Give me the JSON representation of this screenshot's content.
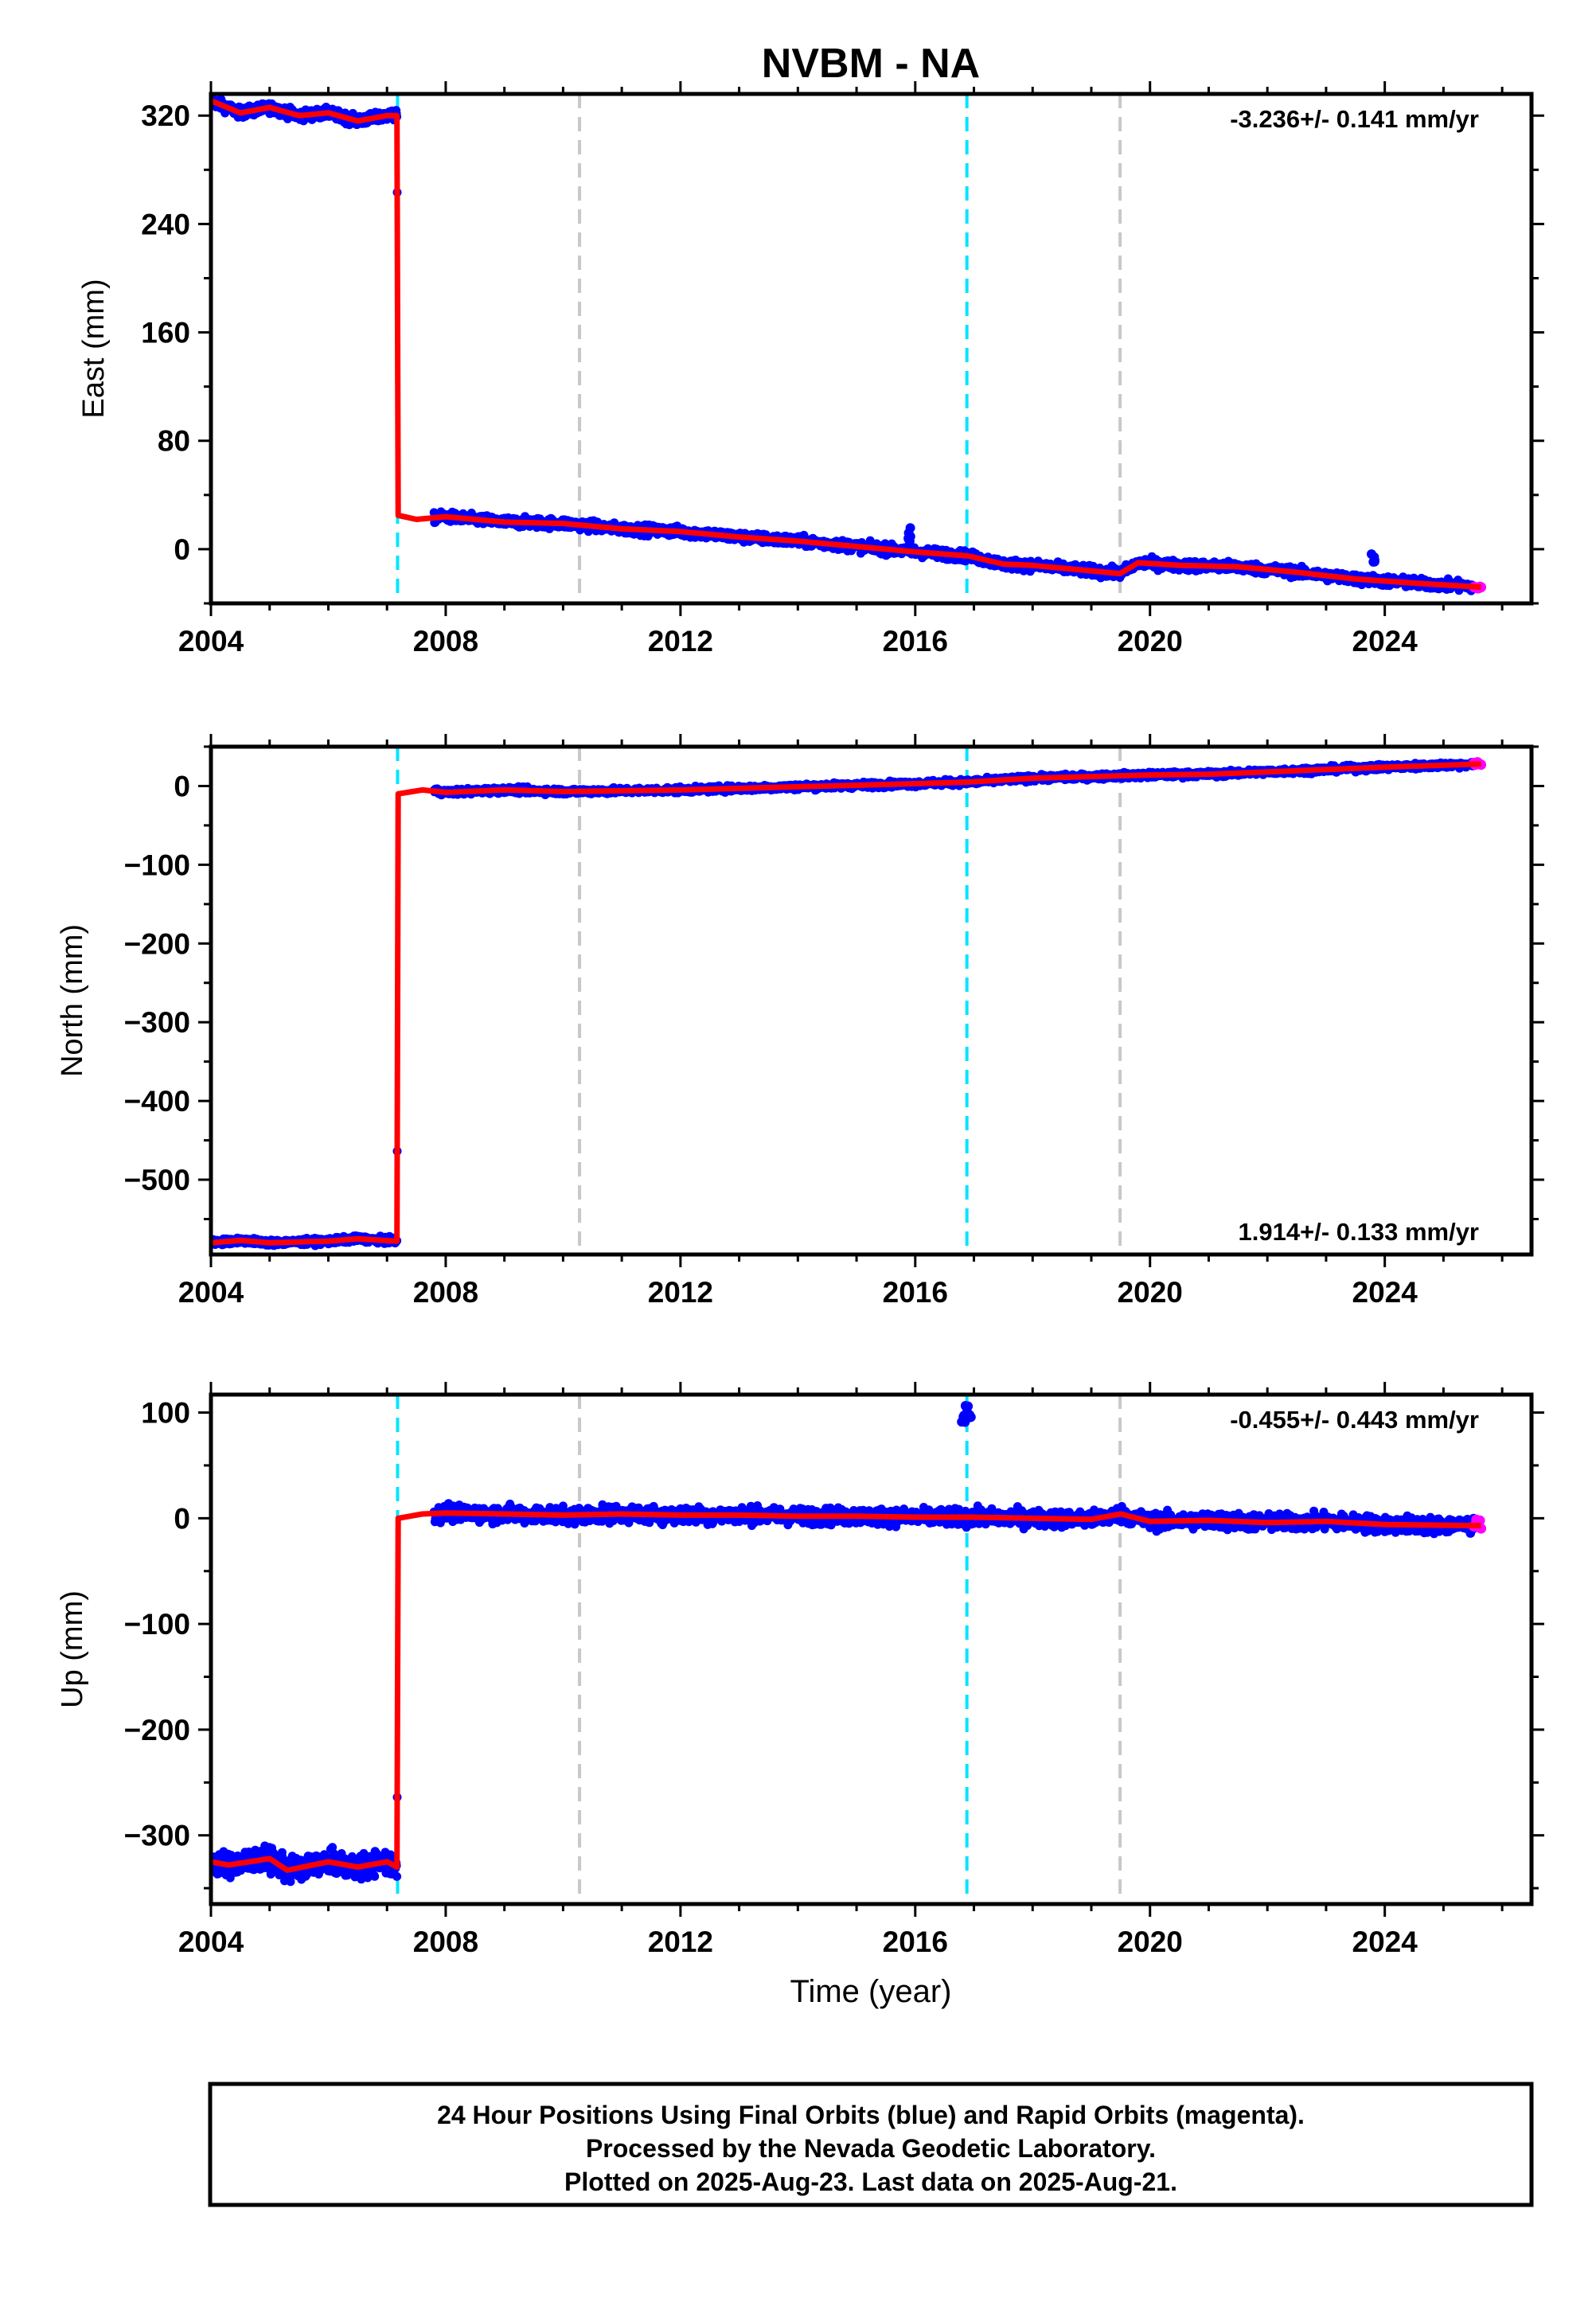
{
  "title": "NVBM - NA",
  "colors": {
    "observations": "#0000ff",
    "rapid": "#ff00ff",
    "model": "#ff0000",
    "equipment_change": "#00e5ff",
    "other_event": "#c8c8c8"
  },
  "xaxis": {
    "xlim": [
      2004.0,
      2026.5
    ],
    "ticks": [
      2004,
      2008,
      2012,
      2016,
      2020,
      2024
    ],
    "label": "Time (year)"
  },
  "events": {
    "cyan": [
      2007.18,
      2016.88
    ],
    "gray": [
      2010.28,
      2019.49
    ]
  },
  "footer": {
    "line1": "24 Hour Positions Using Final Orbits (blue) and Rapid Orbits (magenta).",
    "line2": "Processed by the Nevada Geodetic Laboratory.",
    "line3": "Plotted on 2025-Aug-23. Last data on 2025-Aug-21."
  },
  "chart_data": [
    {
      "type": "scatter",
      "component": "east",
      "ylabel": "East (mm)",
      "ylim": [
        -40,
        336
      ],
      "yticks": [
        0,
        80,
        160,
        240,
        320
      ],
      "rate_label": "-3.236+/- 0.141 mm/yr",
      "rate_position": "top-right",
      "data_range": [
        2004.0,
        2025.64
      ],
      "offset": {
        "epoch": 2007.18,
        "before": 320,
        "after": 25
      },
      "model": [
        {
          "x": 2004.0,
          "y": 331
        },
        {
          "x": 2004.5,
          "y": 322
        },
        {
          "x": 2005.0,
          "y": 326
        },
        {
          "x": 2005.5,
          "y": 320
        },
        {
          "x": 2006.0,
          "y": 322
        },
        {
          "x": 2006.5,
          "y": 316
        },
        {
          "x": 2007.0,
          "y": 320
        },
        {
          "x": 2007.17,
          "y": 320
        },
        {
          "x": 2007.19,
          "y": 25
        },
        {
          "x": 2007.5,
          "y": 22
        },
        {
          "x": 2008.0,
          "y": 24
        },
        {
          "x": 2009.0,
          "y": 20
        },
        {
          "x": 2010.0,
          "y": 19
        },
        {
          "x": 2011.0,
          "y": 15
        },
        {
          "x": 2012.0,
          "y": 13
        },
        {
          "x": 2013.0,
          "y": 9
        },
        {
          "x": 2014.0,
          "y": 6
        },
        {
          "x": 2015.0,
          "y": 2
        },
        {
          "x": 2016.0,
          "y": -2
        },
        {
          "x": 2016.9,
          "y": -5
        },
        {
          "x": 2017.5,
          "y": -11
        },
        {
          "x": 2018.0,
          "y": -12
        },
        {
          "x": 2019.0,
          "y": -16
        },
        {
          "x": 2019.49,
          "y": -18
        },
        {
          "x": 2019.8,
          "y": -10
        },
        {
          "x": 2020.5,
          "y": -12
        },
        {
          "x": 2021.5,
          "y": -13
        },
        {
          "x": 2022.5,
          "y": -17
        },
        {
          "x": 2023.5,
          "y": -22
        },
        {
          "x": 2024.5,
          "y": -25
        },
        {
          "x": 2025.64,
          "y": -28
        }
      ],
      "outliers": [
        {
          "x": 2015.9,
          "y": 10
        },
        {
          "x": 2023.8,
          "y": -8
        }
      ]
    },
    {
      "type": "scatter",
      "component": "north",
      "ylabel": "North (mm)",
      "ylim": [
        -595,
        50
      ],
      "yticks": [
        0,
        -100,
        -200,
        -300,
        -400,
        -500
      ],
      "rate_label": "1.914+/- 0.133 mm/yr",
      "rate_position": "bottom-right",
      "data_range": [
        2004.0,
        2025.64
      ],
      "offset": {
        "epoch": 2007.18,
        "before": -578,
        "after": -10
      },
      "model": [
        {
          "x": 2004.0,
          "y": -580
        },
        {
          "x": 2004.5,
          "y": -577
        },
        {
          "x": 2005.0,
          "y": -580
        },
        {
          "x": 2006.0,
          "y": -578
        },
        {
          "x": 2006.5,
          "y": -575
        },
        {
          "x": 2007.17,
          "y": -578
        },
        {
          "x": 2007.19,
          "y": -10
        },
        {
          "x": 2007.6,
          "y": -5
        },
        {
          "x": 2008.0,
          "y": -8
        },
        {
          "x": 2009.0,
          "y": -5
        },
        {
          "x": 2010.0,
          "y": -7
        },
        {
          "x": 2011.0,
          "y": -6
        },
        {
          "x": 2012.0,
          "y": -5
        },
        {
          "x": 2013.0,
          "y": -3
        },
        {
          "x": 2014.0,
          "y": -1
        },
        {
          "x": 2015.0,
          "y": 1
        },
        {
          "x": 2016.0,
          "y": 3
        },
        {
          "x": 2016.9,
          "y": 5
        },
        {
          "x": 2018.0,
          "y": 10
        },
        {
          "x": 2019.0,
          "y": 12
        },
        {
          "x": 2020.0,
          "y": 14
        },
        {
          "x": 2021.0,
          "y": 15
        },
        {
          "x": 2022.0,
          "y": 18
        },
        {
          "x": 2023.0,
          "y": 21
        },
        {
          "x": 2024.0,
          "y": 24
        },
        {
          "x": 2025.64,
          "y": 28
        }
      ],
      "outliers": []
    },
    {
      "type": "scatter",
      "component": "up",
      "ylabel": "Up (mm)",
      "ylim": [
        -365,
        117
      ],
      "yticks": [
        100,
        0,
        -100,
        -200,
        -300
      ],
      "rate_label": "-0.455+/- 0.443 mm/yr",
      "rate_position": "top-right",
      "data_range": [
        2004.0,
        2025.64
      ],
      "offset": {
        "epoch": 2007.18,
        "before": -330,
        "after": 0
      },
      "model": [
        {
          "x": 2004.0,
          "y": -325
        },
        {
          "x": 2004.3,
          "y": -328
        },
        {
          "x": 2005.0,
          "y": -322
        },
        {
          "x": 2005.3,
          "y": -333
        },
        {
          "x": 2006.0,
          "y": -325
        },
        {
          "x": 2006.5,
          "y": -330
        },
        {
          "x": 2007.0,
          "y": -325
        },
        {
          "x": 2007.17,
          "y": -330
        },
        {
          "x": 2007.19,
          "y": 0
        },
        {
          "x": 2007.6,
          "y": 4
        },
        {
          "x": 2008.0,
          "y": 5
        },
        {
          "x": 2009.0,
          "y": 4
        },
        {
          "x": 2010.0,
          "y": 3
        },
        {
          "x": 2011.0,
          "y": 4
        },
        {
          "x": 2012.0,
          "y": 3
        },
        {
          "x": 2013.0,
          "y": 3
        },
        {
          "x": 2014.0,
          "y": 2
        },
        {
          "x": 2015.0,
          "y": 2
        },
        {
          "x": 2016.0,
          "y": 1
        },
        {
          "x": 2017.0,
          "y": 1
        },
        {
          "x": 2018.0,
          "y": 0
        },
        {
          "x": 2019.0,
          "y": -1
        },
        {
          "x": 2019.5,
          "y": 4
        },
        {
          "x": 2020.0,
          "y": -3
        },
        {
          "x": 2021.0,
          "y": -2
        },
        {
          "x": 2022.0,
          "y": -4
        },
        {
          "x": 2023.0,
          "y": -3
        },
        {
          "x": 2024.0,
          "y": -6
        },
        {
          "x": 2025.64,
          "y": -7
        }
      ],
      "outliers": [
        {
          "x": 2016.82,
          "y": 95
        },
        {
          "x": 2016.88,
          "y": 102
        },
        {
          "x": 2016.92,
          "y": 98
        }
      ]
    }
  ]
}
